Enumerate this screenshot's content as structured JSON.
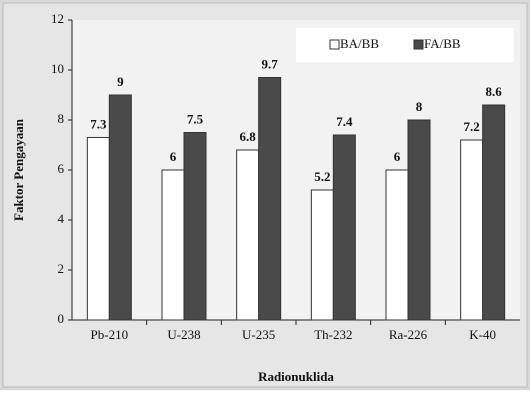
{
  "chart_data": {
    "type": "bar",
    "x_label": "Radionuklida",
    "y_label": "Faktor Pengayaan",
    "categories": [
      "Pb-210",
      "U-238",
      "U-235",
      "Th-232",
      "Ra-226",
      "K-40"
    ],
    "series": [
      {
        "name": "BA/BB",
        "color": "#ffffff",
        "values": [
          7.3,
          6,
          6.8,
          5.2,
          6,
          7.2
        ]
      },
      {
        "name": "FA/BB",
        "color": "#4a4a4a",
        "values": [
          9,
          7.5,
          9.7,
          7.4,
          8,
          8.6
        ]
      }
    ],
    "ylim": [
      0,
      12
    ],
    "yticks": [
      0,
      2,
      4,
      6,
      8,
      10,
      12
    ],
    "grid": false,
    "legend": "top-right"
  }
}
